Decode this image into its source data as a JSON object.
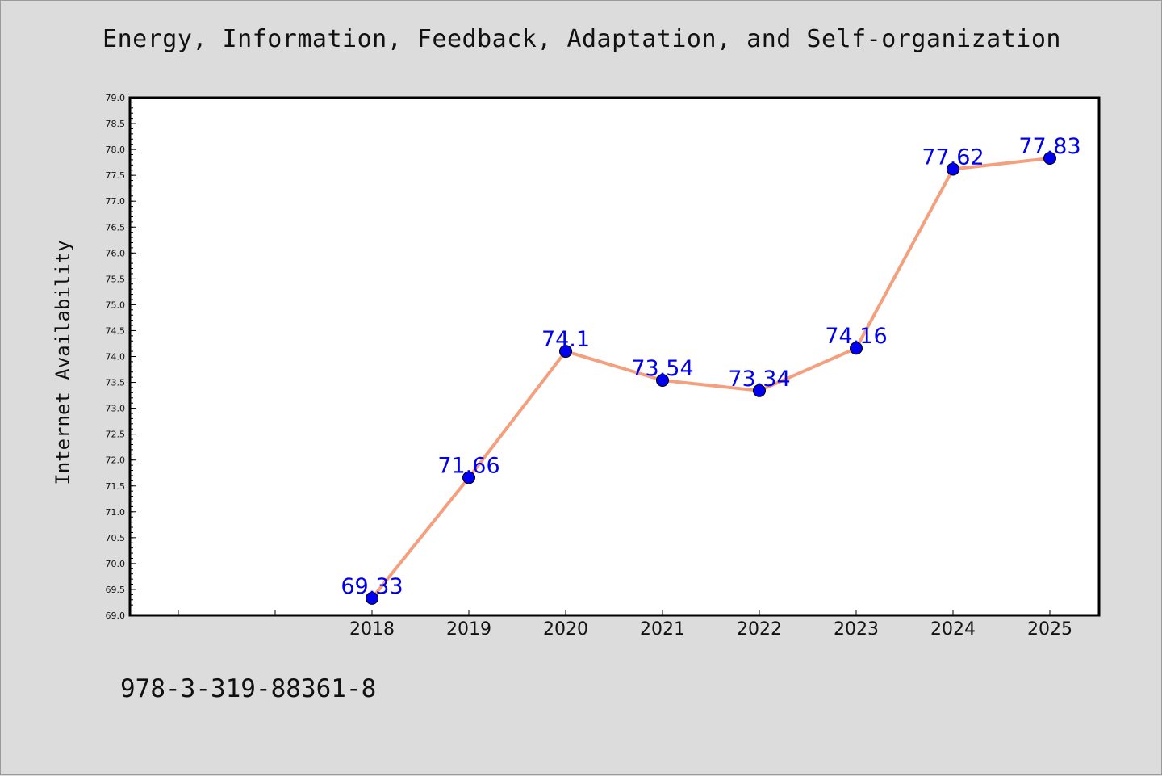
{
  "figure": {
    "title": "Energy, Information, Feedback, Adaptation, and Self-organization",
    "footer_text": "978-3-319-88361-8"
  },
  "chart_data": {
    "type": "line",
    "title": "Energy, Information, Feedback, Adaptation, and Self-organization",
    "xlabel": "",
    "ylabel": "Internet Availability",
    "categories": [
      "2018",
      "2019",
      "2020",
      "2021",
      "2022",
      "2023",
      "2024",
      "2025"
    ],
    "series": [
      {
        "values": [
          69.33,
          71.66,
          74.1,
          73.54,
          73.34,
          74.16,
          77.62,
          77.83
        ],
        "data_labels": [
          "69.33",
          "71.66",
          "74.1",
          "73.54",
          "73.34",
          "74.16",
          "77.62",
          "77.83"
        ],
        "line_color": "#f4a07f",
        "marker_color": "#0000ee"
      }
    ],
    "ylim": [
      69.0,
      79.0
    ],
    "y_ticks": [
      "69.0",
      "69.5",
      "70.0",
      "70.5",
      "71.0",
      "71.5",
      "72.0",
      "72.5",
      "73.0",
      "73.5",
      "74.0",
      "74.5",
      "75.0",
      "75.5",
      "76.0",
      "76.5",
      "77.0",
      "77.5",
      "78.0",
      "78.5",
      "79.0"
    ],
    "grid": false,
    "legend": "none",
    "label_color": "#0000ee",
    "plot_background": "#ffffff",
    "figure_background": "#dcdcdc"
  }
}
